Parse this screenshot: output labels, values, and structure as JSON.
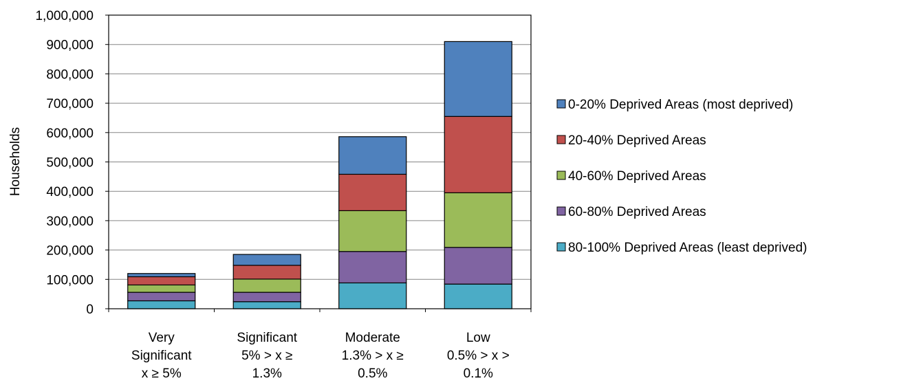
{
  "chart_data": {
    "type": "bar",
    "stacked": true,
    "ylabel": "Households",
    "xlabel": "",
    "ylim": [
      0,
      1000000
    ],
    "y_ticks": [
      0,
      100000,
      200000,
      300000,
      400000,
      500000,
      600000,
      700000,
      800000,
      900000,
      1000000
    ],
    "y_tick_labels": [
      "0",
      "100,000",
      "200,000",
      "300,000",
      "400,000",
      "500,000",
      "600,000",
      "700,000",
      "800,000",
      "900,000",
      "1,000,000"
    ],
    "grid": true,
    "legend_position": "right",
    "categories": [
      [
        "Very",
        "Significant",
        "x ≥ 5%"
      ],
      [
        "Significant",
        "5% > x ≥",
        "1.3%"
      ],
      [
        "Moderate",
        "1.3% > x ≥",
        "0.5%"
      ],
      [
        "Low",
        "0.5% > x >",
        "0.1%"
      ]
    ],
    "series": [
      {
        "name": "80-100% Deprived Areas (least deprived)",
        "color": "#4bacc6",
        "values": [
          27000,
          24000,
          88000,
          84000
        ]
      },
      {
        "name": "60-80% Deprived Areas",
        "color": "#8064a2",
        "values": [
          29000,
          32000,
          107000,
          125000
        ]
      },
      {
        "name": "40-60% Deprived Areas",
        "color": "#9bbb59",
        "values": [
          25000,
          45000,
          139000,
          186000
        ]
      },
      {
        "name": "20-40% Deprived Areas",
        "color": "#c0504d",
        "values": [
          28000,
          47000,
          124000,
          260000
        ]
      },
      {
        "name": "0-20% Deprived Areas (most deprived)",
        "color": "#4f81bd",
        "values": [
          11000,
          37000,
          128000,
          255000
        ]
      }
    ]
  }
}
